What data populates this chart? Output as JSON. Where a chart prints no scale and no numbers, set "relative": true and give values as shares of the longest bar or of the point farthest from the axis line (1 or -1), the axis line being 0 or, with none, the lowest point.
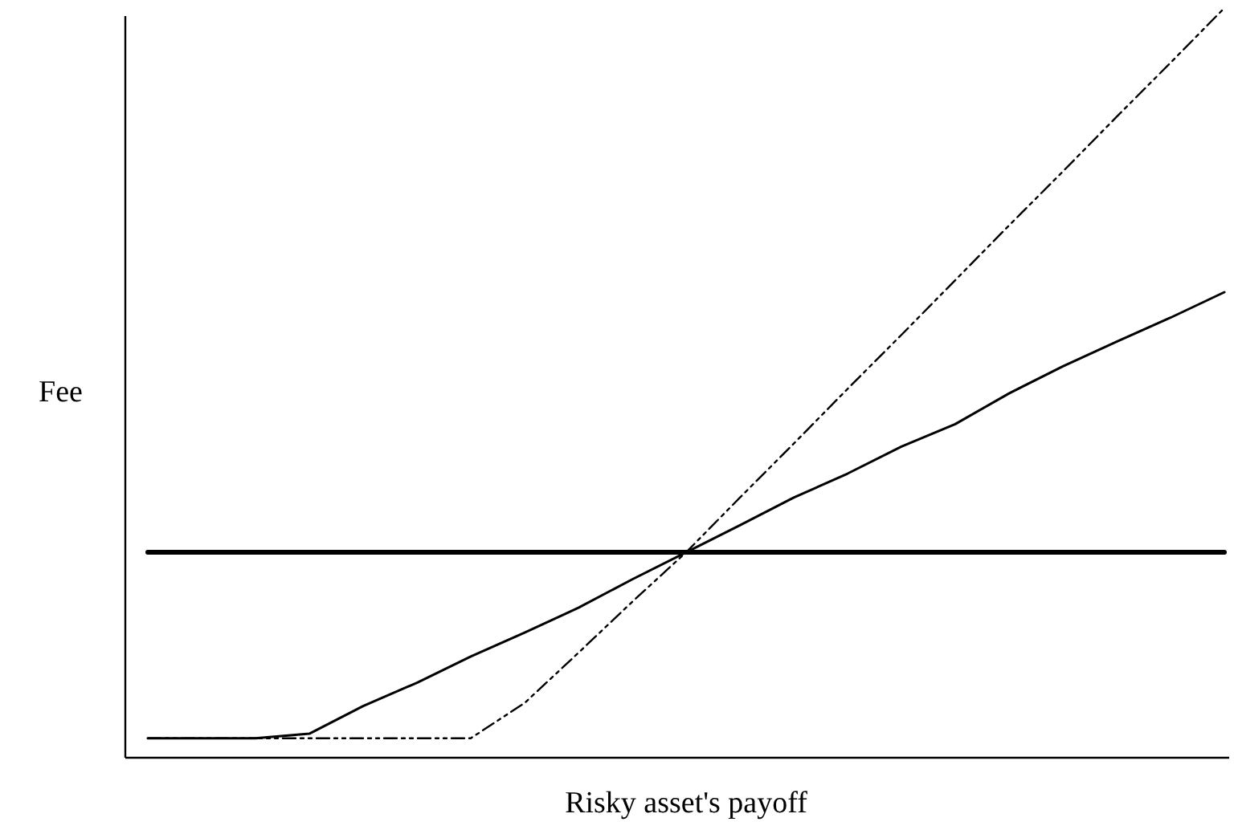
{
  "chart_data": {
    "type": "line",
    "relative": true,
    "xlabel": "Risky asset's payoff",
    "ylabel": "Fee",
    "marker": "none",
    "categories": [
      null,
      null,
      null,
      null,
      null,
      null,
      null,
      null,
      null,
      null,
      null,
      null,
      null,
      null,
      null,
      null,
      null,
      null,
      null,
      null,
      null
    ],
    "series": [
      {
        "color": "#000000",
        "line_style": "solid",
        "values": [
          0.274,
          0.274,
          0.274,
          0.274,
          0.274,
          0.274,
          0.274,
          0.274,
          0.274,
          0.274,
          0.274,
          0.274,
          0.274,
          0.274,
          0.274,
          0.274,
          0.274,
          0.274,
          0.274,
          0.274,
          0.274
        ]
      },
      {
        "color": "#000000",
        "line_style": "solid",
        "values": [
          0.026,
          0.026,
          0.026,
          0.032,
          0.069,
          0.1,
          0.135,
          0.167,
          0.2,
          0.238,
          0.274,
          0.31,
          0.347,
          0.379,
          0.415,
          0.445,
          0.486,
          0.522,
          0.555,
          0.587,
          0.621
        ]
      },
      {
        "color": "#000000",
        "line_style": "dashed",
        "values": [
          0.026,
          0.026,
          0.026,
          0.026,
          0.026,
          0.026,
          0.026,
          0.073,
          0.14,
          0.208,
          0.274,
          0.347,
          0.419,
          0.492,
          0.564,
          0.637,
          0.71,
          0.782,
          0.855,
          0.927,
          1.0
        ]
      }
    ]
  }
}
